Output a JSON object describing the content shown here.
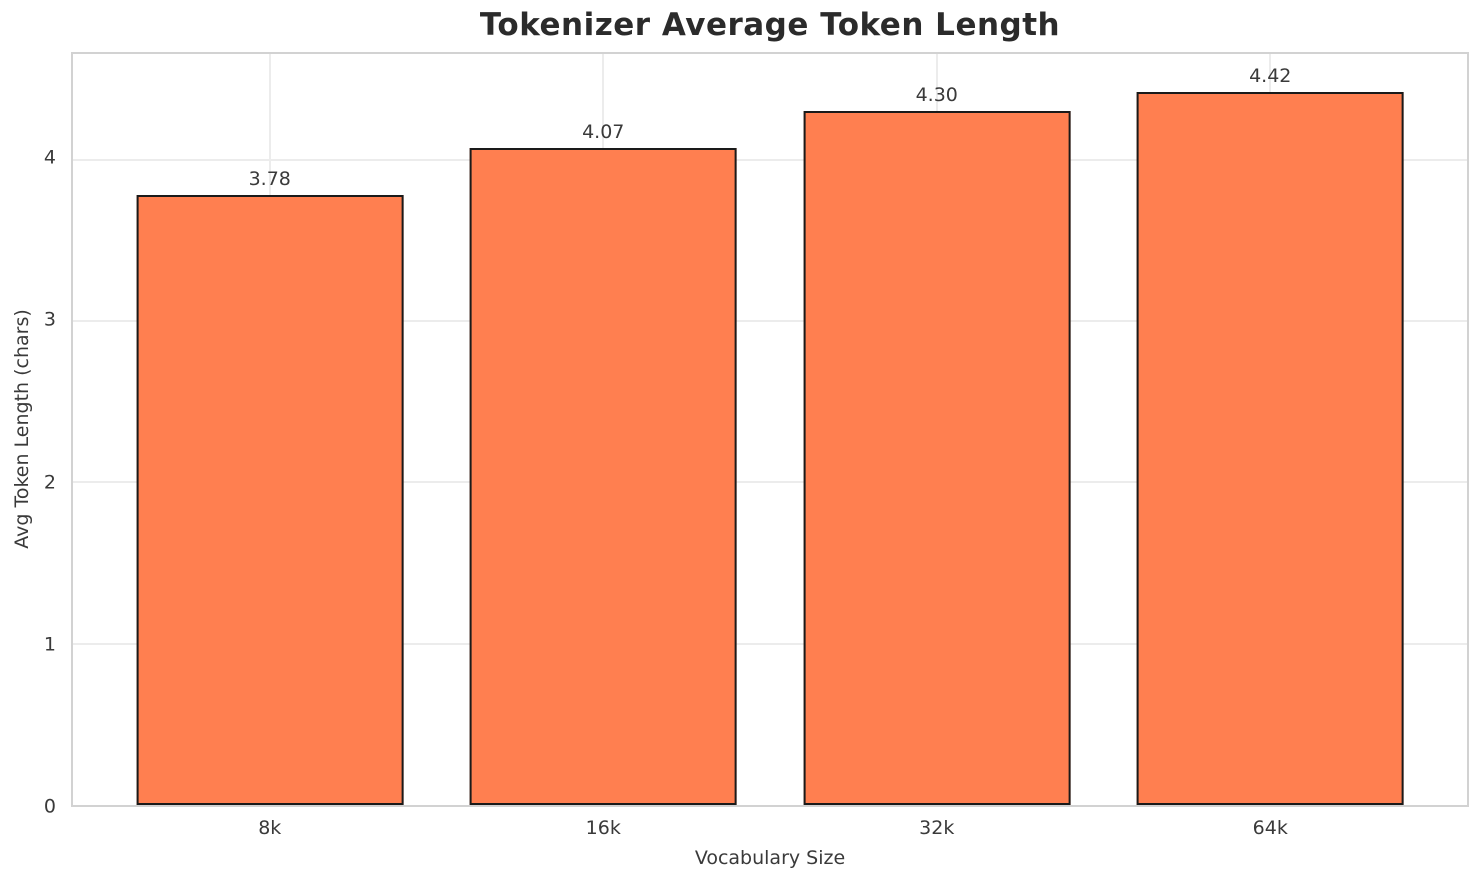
{
  "chart_data": {
    "type": "bar",
    "title": "Tokenizer Average Token Length",
    "xlabel": "Vocabulary Size",
    "ylabel": "Avg Token Length (chars)",
    "categories": [
      "8k",
      "16k",
      "32k",
      "64k"
    ],
    "values": [
      3.78,
      4.07,
      4.3,
      4.42
    ],
    "value_labels": [
      "3.78",
      "4.07",
      "4.30",
      "4.42"
    ],
    "yticks": [
      0,
      1,
      2,
      3,
      4
    ],
    "ytick_labels": [
      "0",
      "1",
      "2",
      "3",
      "4"
    ],
    "ylim": [
      0,
      4.655
    ],
    "xlim": [
      -0.59,
      3.59
    ],
    "bar_width": 0.8,
    "grid": "both",
    "legend_position": "none",
    "colors": {
      "bar_fill": "#FF7F50",
      "bar_edge": "#1a1a1a",
      "grid_line": "#ececec",
      "spine": "#d2d2d2",
      "title_text": "#2b2b2b",
      "tick_text": "#3a3a3a"
    }
  }
}
